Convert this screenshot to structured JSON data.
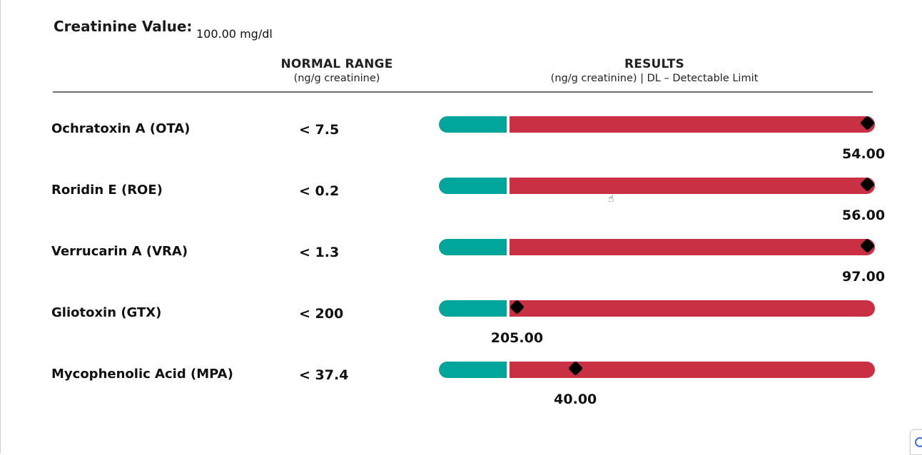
{
  "creatinine": {
    "label": "Creatinine Value:",
    "value": "100.00 mg/dl"
  },
  "headers": {
    "normal_range": {
      "title": "NORMAL RANGE",
      "subtitle": "(ng/g creatinine)"
    },
    "results": {
      "title": "RESULTS",
      "subtitle": "(ng/g creatinine) | DL – Detectable Limit"
    }
  },
  "colors": {
    "normal_bar": "#00a69c",
    "elevated_bar": "#c93043",
    "marker": "#000000"
  },
  "rows": [
    {
      "name": "Ochratoxin A (OTA)",
      "range": "< 7.5",
      "result": "54.00",
      "marker_position": 0.98
    },
    {
      "name": "Roridin E (ROE)",
      "range": "< 0.2",
      "result": "56.00",
      "marker_position": 0.98
    },
    {
      "name": "Verrucarin A (VRA)",
      "range": "< 1.3",
      "result": "97.00",
      "marker_position": 0.98
    },
    {
      "name": "Gliotoxin (GTX)",
      "range": "< 200",
      "result": "205.00",
      "marker_position": 0.02
    },
    {
      "name": "Mycophenolic Acid (MPA)",
      "range": "< 37.4",
      "result": "40.00",
      "marker_position": 0.18
    }
  ],
  "icons": {
    "cursor": "hand-cursor-icon",
    "widget": "assistant-widget-icon"
  }
}
